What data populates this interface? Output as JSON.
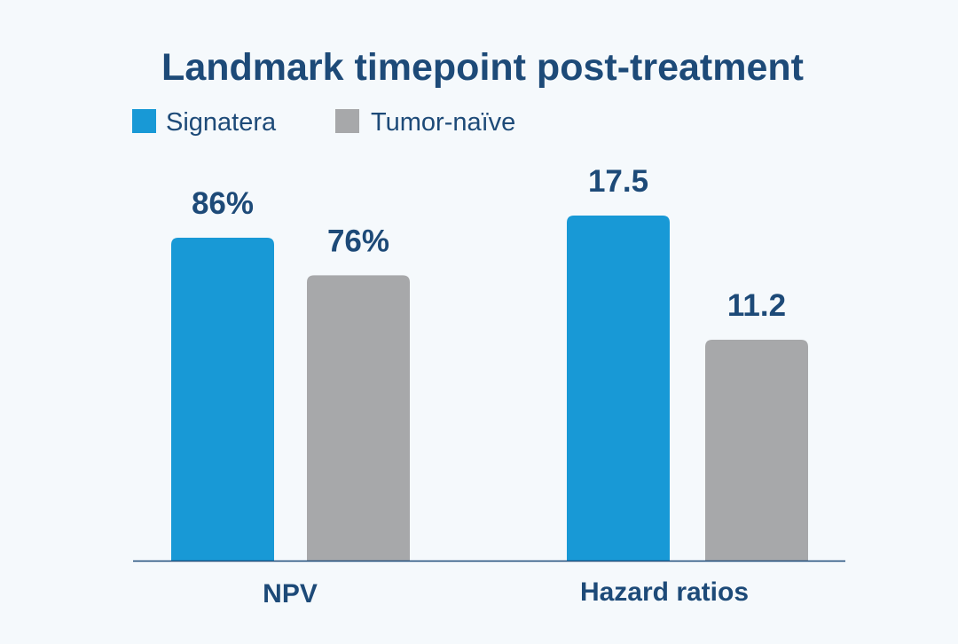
{
  "chart_data": {
    "type": "bar",
    "title": "Landmark timepoint post-treatment",
    "categories": [
      "NPV",
      "Hazard ratios"
    ],
    "series": [
      {
        "name": "Signatera",
        "values": [
          86,
          17.5
        ],
        "labels": [
          "86%",
          "17.5"
        ]
      },
      {
        "name": "Tumor-naïve",
        "values": [
          76,
          11.2
        ],
        "labels": [
          "76%",
          "11.2"
        ]
      }
    ],
    "legend": "top-left",
    "grid": false,
    "xlabel": "",
    "ylabel": ""
  },
  "colors": {
    "background": "#f5f9fc",
    "signatera": "#1899d6",
    "tumor_naive": "#a7a8aa",
    "text": "#1d4a78",
    "axis": "#1d4a78"
  }
}
